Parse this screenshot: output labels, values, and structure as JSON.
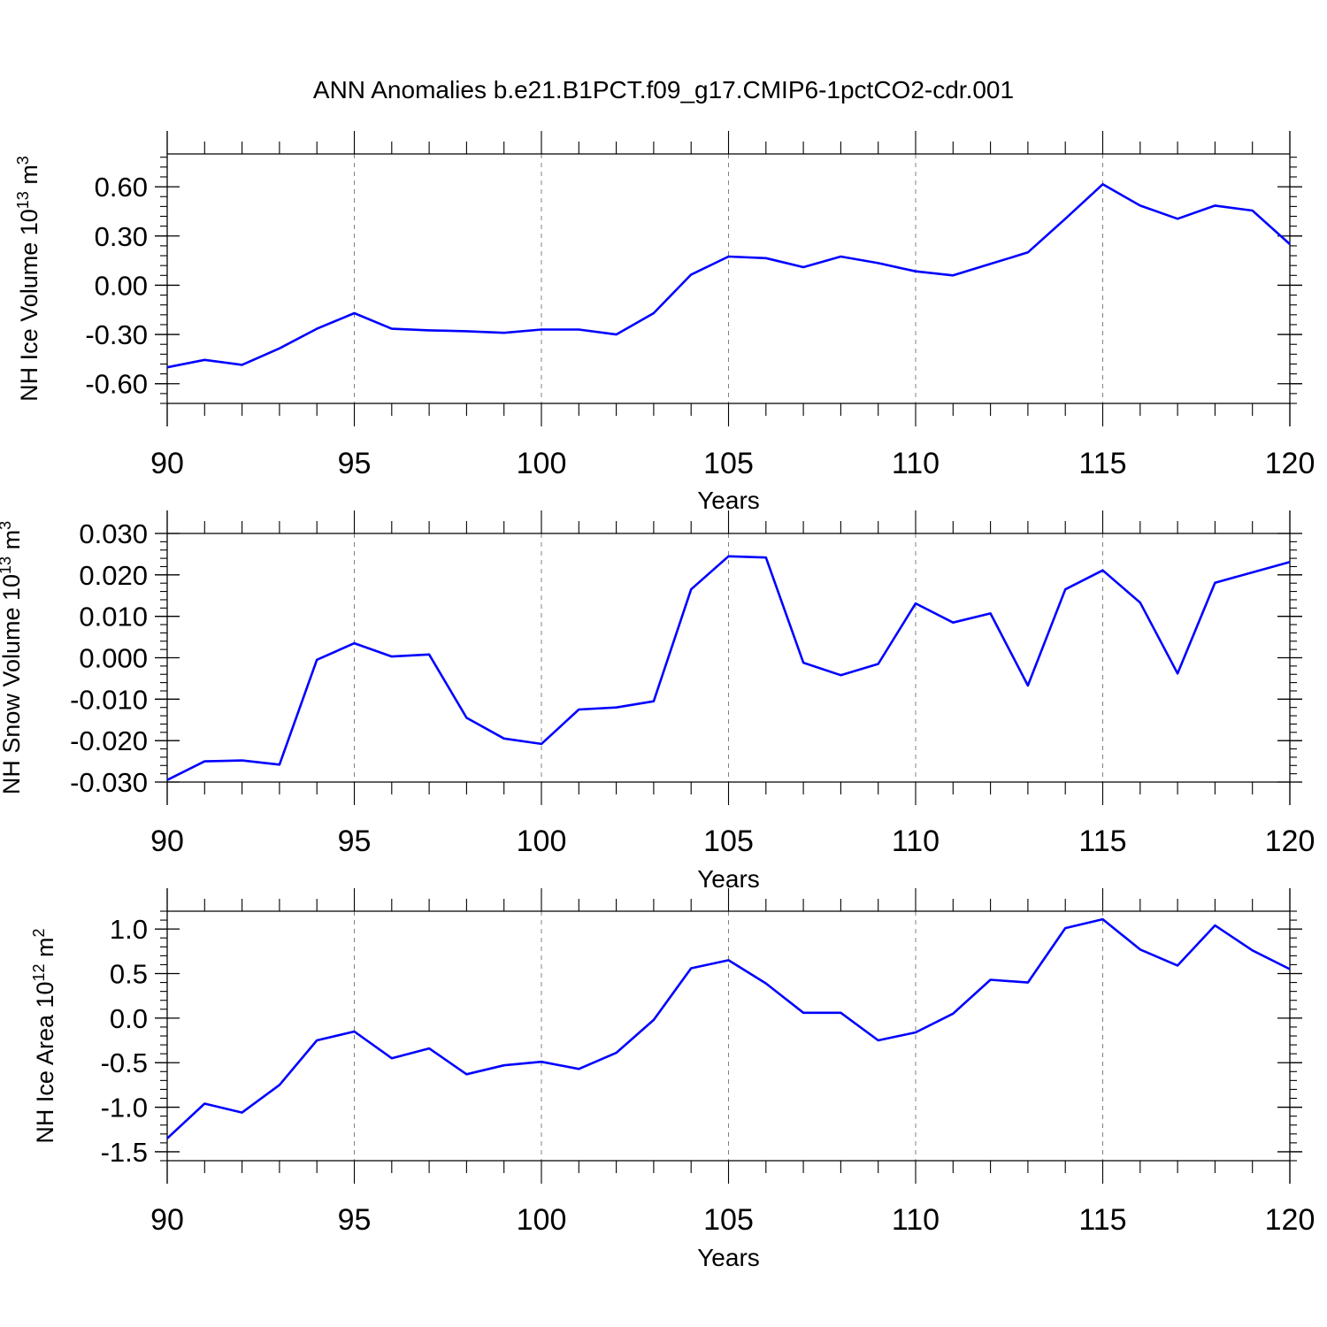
{
  "title": "ANN Anomalies b.e21.B1PCT.f09_g17.CMIP6-1pctCO2-cdr.001",
  "colors": {
    "line": "#0000ff",
    "axis": "#000000",
    "grid": "#808080"
  },
  "chart_data": [
    {
      "type": "line",
      "ylabel": {
        "prefix": "NH Ice Volume 10",
        "exp": "13",
        "mid": " m",
        "unit_exp": "3"
      },
      "xlabel": "Years",
      "xlim": [
        90,
        120
      ],
      "ylim": [
        -0.72,
        0.8
      ],
      "xticks": [
        90,
        95,
        100,
        105,
        110,
        115,
        120
      ],
      "xtick_labels": [
        "90",
        "95",
        "100",
        "105",
        "110",
        "115",
        "120"
      ],
      "yticks": [
        -0.6,
        -0.3,
        0.0,
        0.3,
        0.6
      ],
      "ytick_labels": [
        "-0.60",
        "-0.30",
        "0.00",
        "0.30",
        "0.60"
      ],
      "grid": "vertical dashed at labeled years",
      "series": [
        {
          "x": [
            90,
            91,
            92,
            93,
            94,
            95,
            96,
            97,
            98,
            99,
            100,
            101,
            102,
            103,
            104,
            105,
            106,
            107,
            108,
            109,
            110,
            111,
            112,
            113,
            114,
            115,
            116,
            117,
            118,
            119,
            120
          ],
          "values": [
            -0.5,
            -0.455,
            -0.485,
            -0.385,
            -0.265,
            -0.17,
            -0.265,
            -0.275,
            -0.28,
            -0.29,
            -0.27,
            -0.27,
            -0.3,
            -0.17,
            0.065,
            0.175,
            0.165,
            0.11,
            0.175,
            0.135,
            0.085,
            0.06,
            0.13,
            0.2,
            0.405,
            0.615,
            0.485,
            0.405,
            0.485,
            0.455,
            0.25
          ]
        }
      ]
    },
    {
      "type": "line",
      "ylabel": {
        "prefix": "NH Snow Volume 10",
        "exp": "13",
        "mid": " m",
        "unit_exp": "3"
      },
      "xlabel": "Years",
      "xlim": [
        90,
        120
      ],
      "ylim": [
        -0.03,
        0.03
      ],
      "xticks": [
        90,
        95,
        100,
        105,
        110,
        115,
        120
      ],
      "xtick_labels": [
        "90",
        "95",
        "100",
        "105",
        "110",
        "115",
        "120"
      ],
      "yticks": [
        -0.03,
        -0.02,
        -0.01,
        0.0,
        0.01,
        0.02,
        0.03
      ],
      "ytick_labels": [
        "-0.030",
        "-0.020",
        "-0.010",
        "0.000",
        "0.010",
        "0.020",
        "0.030"
      ],
      "grid": "vertical dashed at labeled years",
      "series": [
        {
          "x": [
            90,
            91,
            92,
            93,
            94,
            95,
            96,
            97,
            98,
            99,
            100,
            101,
            102,
            103,
            104,
            105,
            106,
            107,
            108,
            109,
            110,
            111,
            112,
            113,
            114,
            115,
            116,
            117,
            118,
            119,
            120
          ],
          "values": [
            -0.0295,
            -0.025,
            -0.0248,
            -0.0258,
            -0.0005,
            0.0035,
            0.0003,
            0.0008,
            -0.0145,
            -0.0195,
            -0.0208,
            -0.0125,
            -0.012,
            -0.0105,
            0.0165,
            0.0245,
            0.0242,
            -0.0012,
            -0.0042,
            -0.0015,
            0.0131,
            0.0085,
            0.0107,
            -0.0067,
            0.0165,
            0.0211,
            0.0133,
            -0.0038,
            0.0181,
            0.0206,
            0.0231
          ]
        }
      ]
    },
    {
      "type": "line",
      "ylabel": {
        "prefix": "NH Ice Area 10",
        "exp": "12",
        "mid": " m",
        "unit_exp": "2"
      },
      "xlabel": "Years",
      "xlim": [
        90,
        120
      ],
      "ylim": [
        -1.6,
        1.2
      ],
      "xticks": [
        90,
        95,
        100,
        105,
        110,
        115,
        120
      ],
      "xtick_labels": [
        "90",
        "95",
        "100",
        "105",
        "110",
        "115",
        "120"
      ],
      "yticks": [
        -1.5,
        -1.0,
        -0.5,
        0.0,
        0.5,
        1.0
      ],
      "ytick_labels": [
        "-1.5",
        "-1.0",
        "-0.5",
        "0.0",
        "0.5",
        "1.0"
      ],
      "grid": "vertical dashed at labeled years",
      "series": [
        {
          "x": [
            90,
            91,
            92,
            93,
            94,
            95,
            96,
            97,
            98,
            99,
            100,
            101,
            102,
            103,
            104,
            105,
            106,
            107,
            108,
            109,
            110,
            111,
            112,
            113,
            114,
            115,
            116,
            117,
            118,
            119,
            120
          ],
          "values": [
            -1.35,
            -0.96,
            -1.06,
            -0.75,
            -0.25,
            -0.15,
            -0.45,
            -0.34,
            -0.63,
            -0.53,
            -0.49,
            -0.57,
            -0.39,
            -0.02,
            0.56,
            0.65,
            0.39,
            0.06,
            0.06,
            -0.25,
            -0.16,
            0.05,
            0.43,
            0.4,
            1.01,
            1.11,
            0.77,
            0.59,
            1.04,
            0.76,
            0.55
          ]
        }
      ]
    }
  ]
}
